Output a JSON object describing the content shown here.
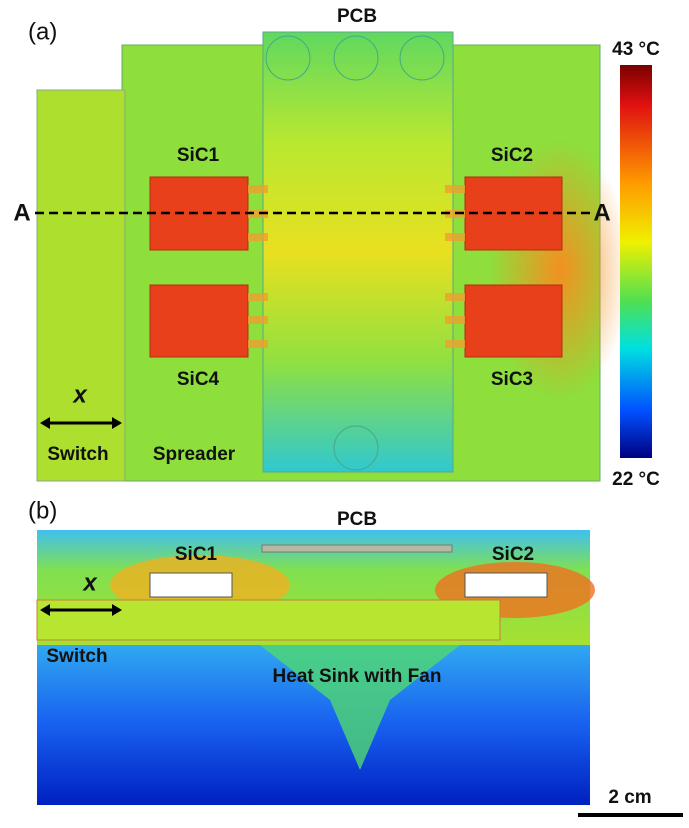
{
  "panel_a": {
    "label": "(a)",
    "pcb": "PCB",
    "colorbar": {
      "max": "43 °C",
      "min": "22 °C"
    },
    "devices": [
      "SiC1",
      "SiC2",
      "SiC3",
      "SiC4"
    ],
    "section_left": "A",
    "section_right": "A",
    "x_label": "x",
    "switch": "Switch",
    "spreader": "Spreader"
  },
  "panel_b": {
    "label": "(b)",
    "pcb": "PCB",
    "devices": [
      "SiC1",
      "SiC2"
    ],
    "x_label": "x",
    "switch": "Switch",
    "heat_sink": "Heat Sink with Fan",
    "scale": "2 cm"
  }
}
